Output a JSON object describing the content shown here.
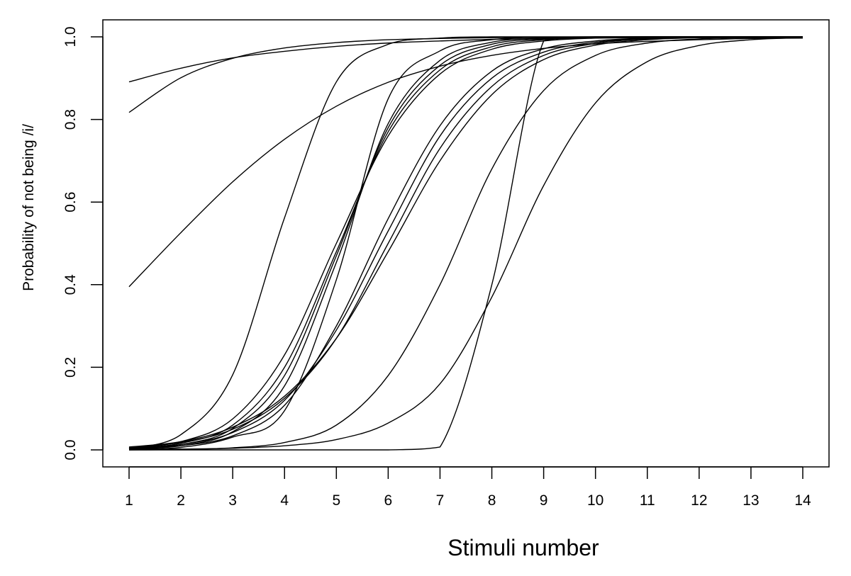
{
  "chart_data": {
    "type": "line",
    "title": "",
    "xlabel": "Stimuli number",
    "ylabel": "Probability of not being /i/",
    "xlim": [
      1,
      14
    ],
    "ylim": [
      0,
      1
    ],
    "x_ticks": [
      1,
      2,
      3,
      4,
      5,
      6,
      7,
      8,
      9,
      10,
      11,
      12,
      13,
      14
    ],
    "y_ticks": [
      "0.0",
      "0.2",
      "0.4",
      "0.6",
      "0.8",
      "1.0"
    ],
    "grid": false,
    "legend": "none",
    "x": [
      1,
      2,
      3,
      4,
      5,
      6,
      7,
      8,
      9,
      10,
      11,
      12,
      13,
      14
    ],
    "series": [
      {
        "values": [
          0.891,
          0.924,
          0.949,
          0.965,
          0.977,
          0.985,
          0.99,
          0.994,
          0.996,
          0.997,
          0.998,
          0.999,
          0.999,
          1.0
        ]
      },
      {
        "values": [
          0.817,
          0.901,
          0.948,
          0.973,
          0.986,
          0.993,
          0.996,
          0.998,
          0.999,
          0.999,
          1.0,
          1.0,
          1.0,
          1.0
        ]
      },
      {
        "values": [
          0.395,
          0.526,
          0.649,
          0.752,
          0.832,
          0.89,
          0.929,
          0.955,
          0.972,
          0.983,
          0.989,
          0.993,
          0.996,
          0.997
        ]
      },
      {
        "values": [
          0.003,
          0.037,
          0.182,
          0.562,
          0.891,
          0.982,
          0.997,
          1.0,
          1.0,
          1.0,
          1.0,
          1.0,
          1.0,
          1.0
        ]
      },
      {
        "values": [
          0.001,
          0.006,
          0.031,
          0.095,
          0.412,
          0.85,
          0.966,
          0.993,
          0.999,
          1.0,
          1.0,
          1.0,
          1.0,
          1.0
        ]
      },
      {
        "values": [
          0.002,
          0.01,
          0.044,
          0.155,
          0.454,
          0.79,
          0.943,
          0.987,
          0.997,
          0.999,
          1.0,
          1.0,
          1.0,
          1.0
        ]
      },
      {
        "values": [
          0.003,
          0.013,
          0.052,
          0.18,
          0.47,
          0.78,
          0.931,
          0.982,
          0.995,
          0.999,
          1.0,
          1.0,
          1.0,
          1.0
        ]
      },
      {
        "values": [
          0.004,
          0.016,
          0.06,
          0.2,
          0.48,
          0.77,
          0.92,
          0.976,
          0.993,
          0.998,
          0.999,
          1.0,
          1.0,
          1.0
        ]
      },
      {
        "values": [
          0.005,
          0.02,
          0.075,
          0.23,
          0.5,
          0.76,
          0.91,
          0.97,
          0.99,
          0.997,
          0.999,
          1.0,
          1.0,
          1.0
        ]
      },
      {
        "values": [
          0.003,
          0.01,
          0.034,
          0.108,
          0.3,
          0.56,
          0.785,
          0.917,
          0.971,
          0.99,
          0.997,
          0.999,
          1.0,
          1.0
        ]
      },
      {
        "values": [
          0.004,
          0.013,
          0.042,
          0.12,
          0.29,
          0.53,
          0.76,
          0.9,
          0.963,
          0.987,
          0.996,
          0.999,
          1.0,
          1.0
        ]
      },
      {
        "values": [
          0.006,
          0.018,
          0.05,
          0.125,
          0.27,
          0.5,
          0.73,
          0.88,
          0.955,
          0.984,
          0.995,
          0.998,
          0.999,
          1.0
        ]
      },
      {
        "values": [
          0.007,
          0.02,
          0.055,
          0.13,
          0.27,
          0.48,
          0.7,
          0.86,
          0.945,
          0.98,
          0.993,
          0.998,
          0.999,
          1.0
        ]
      },
      {
        "values": [
          0.0,
          0.001,
          0.005,
          0.018,
          0.06,
          0.18,
          0.4,
          0.68,
          0.87,
          0.955,
          0.985,
          0.995,
          0.998,
          0.999
        ]
      },
      {
        "values": [
          0.001,
          0.002,
          0.004,
          0.01,
          0.025,
          0.065,
          0.16,
          0.37,
          0.64,
          0.84,
          0.94,
          0.979,
          0.993,
          0.998
        ]
      },
      {
        "values": [
          0.0,
          0.0,
          0.0,
          0.0,
          0.0,
          0.0,
          0.007,
          0.4,
          0.99,
          1.0,
          1.0,
          1.0,
          1.0,
          1.0
        ]
      }
    ]
  }
}
